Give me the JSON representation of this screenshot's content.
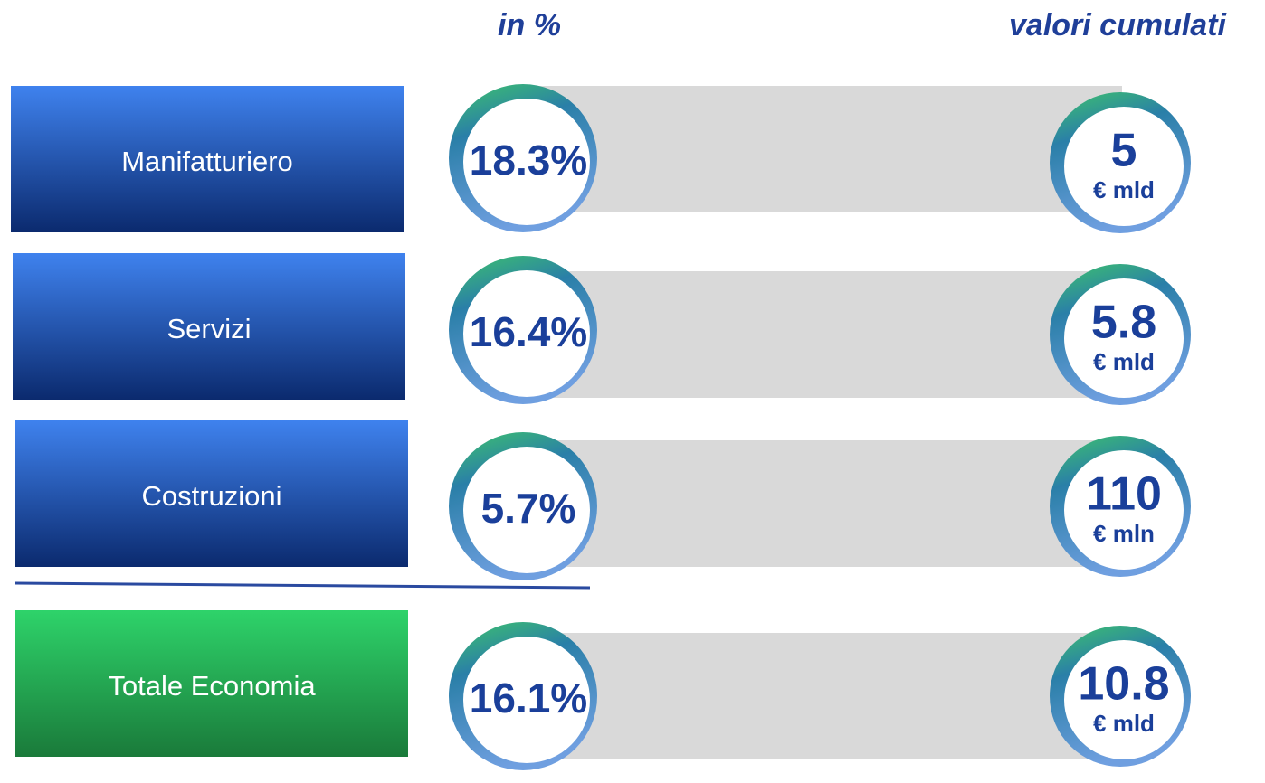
{
  "header": {
    "left": "in %",
    "right": "valori cumulati"
  },
  "rows": [
    {
      "label": "Manifatturiero",
      "percent": "18.3%",
      "value": "5",
      "unit": "€ mld"
    },
    {
      "label": "Servizi",
      "percent": "16.4%",
      "value": "5.8",
      "unit": "€ mld"
    },
    {
      "label": "Costruzioni",
      "percent": "5.7%",
      "value": "110",
      "unit": "€ mln"
    },
    {
      "label": "Totale Economia",
      "percent": "16.1%",
      "value": "10.8",
      "unit": "€ mld"
    }
  ]
}
